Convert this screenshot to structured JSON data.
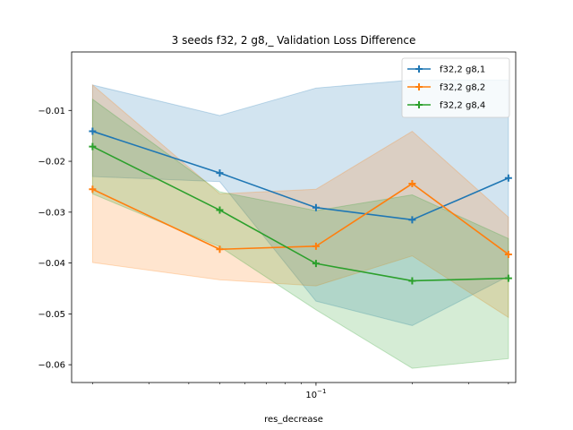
{
  "chart_data": {
    "type": "line",
    "title": "3 seeds f32, 2 g8,_ Validation Loss Difference",
    "xlabel": "res_decrease",
    "ylabel": "",
    "xscale": "log",
    "xlim": [
      0.0172,
      0.4215
    ],
    "ylim": [
      -0.0635,
      0.0015
    ],
    "x": [
      0.02,
      0.05,
      0.1,
      0.2,
      0.4
    ],
    "x_major_ticks": [
      {
        "value": 0.1,
        "base": "10",
        "exponent": "−1"
      }
    ],
    "x_minor_ticks": [
      0.02,
      0.03,
      0.04,
      0.05,
      0.06,
      0.07,
      0.08,
      0.09,
      0.2,
      0.3,
      0.4
    ],
    "y_ticks": [
      -0.01,
      -0.02,
      -0.03,
      -0.04,
      -0.05,
      -0.06
    ],
    "y_tick_labels": [
      "−0.01",
      "−0.02",
      "−0.03",
      "−0.04",
      "−0.05",
      "−0.06"
    ],
    "grid": false,
    "legend_position": "top-right",
    "series": [
      {
        "name": "f32,2 g8,1",
        "color": "#1f77b4",
        "marker": "plus",
        "values": [
          -0.0141,
          -0.0223,
          -0.0291,
          -0.0315,
          -0.0233
        ],
        "upper": [
          -0.005,
          -0.011,
          -0.0056,
          -0.004,
          -0.004
        ],
        "lower": [
          -0.023,
          -0.024,
          -0.0475,
          -0.0523,
          -0.0426
        ]
      },
      {
        "name": "f32,2 g8,2",
        "color": "#ff7f0e",
        "marker": "plus",
        "values": [
          -0.0255,
          -0.0373,
          -0.0367,
          -0.0244,
          -0.0383
        ],
        "upper": [
          -0.005,
          -0.0264,
          -0.0255,
          -0.0141,
          -0.031
        ],
        "lower": [
          -0.0399,
          -0.0433,
          -0.0445,
          -0.0386,
          -0.0507
        ]
      },
      {
        "name": "f32,2 g8,4",
        "color": "#2ca02c",
        "marker": "plus",
        "values": [
          -0.0171,
          -0.0296,
          -0.0401,
          -0.0435,
          -0.043
        ],
        "upper": [
          -0.0078,
          -0.026,
          -0.0297,
          -0.0266,
          -0.0352
        ],
        "lower": [
          -0.0264,
          -0.0368,
          -0.0492,
          -0.0607,
          -0.0588
        ]
      }
    ]
  }
}
